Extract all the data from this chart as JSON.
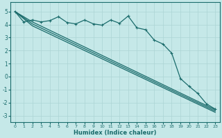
{
  "xlabel": "Humidex (Indice chaleur)",
  "xlim": [
    -0.5,
    23.5
  ],
  "ylim": [
    -3.5,
    5.7
  ],
  "yticks": [
    -3,
    -2,
    -1,
    0,
    1,
    2,
    3,
    4,
    5
  ],
  "xticks": [
    0,
    1,
    2,
    3,
    4,
    5,
    6,
    7,
    8,
    9,
    10,
    11,
    12,
    13,
    14,
    15,
    16,
    17,
    18,
    19,
    20,
    21,
    22,
    23
  ],
  "bg_color": "#c5e8e8",
  "grid_color": "#acd4d4",
  "line_color": "#1a6b6b",
  "line1_x": [
    0,
    1,
    2,
    3,
    4,
    5,
    6,
    7,
    8,
    9,
    10,
    11,
    12,
    13,
    14,
    15,
    16,
    17,
    18,
    19,
    20,
    21,
    22,
    23
  ],
  "line1_y": [
    5.0,
    4.2,
    4.35,
    4.2,
    4.3,
    4.6,
    4.15,
    4.05,
    4.35,
    4.05,
    3.95,
    4.35,
    4.1,
    4.65,
    3.75,
    3.6,
    2.8,
    2.5,
    1.8,
    -0.15,
    -0.75,
    -1.3,
    -2.1,
    -2.5
  ],
  "line2_x": [
    0,
    2,
    23
  ],
  "line2_y": [
    5.0,
    4.2,
    -2.55
  ],
  "line3_x": [
    0,
    2,
    23
  ],
  "line3_y": [
    5.0,
    4.05,
    -2.65
  ],
  "line4_x": [
    0,
    2,
    23
  ],
  "line4_y": [
    5.0,
    3.9,
    -2.75
  ]
}
